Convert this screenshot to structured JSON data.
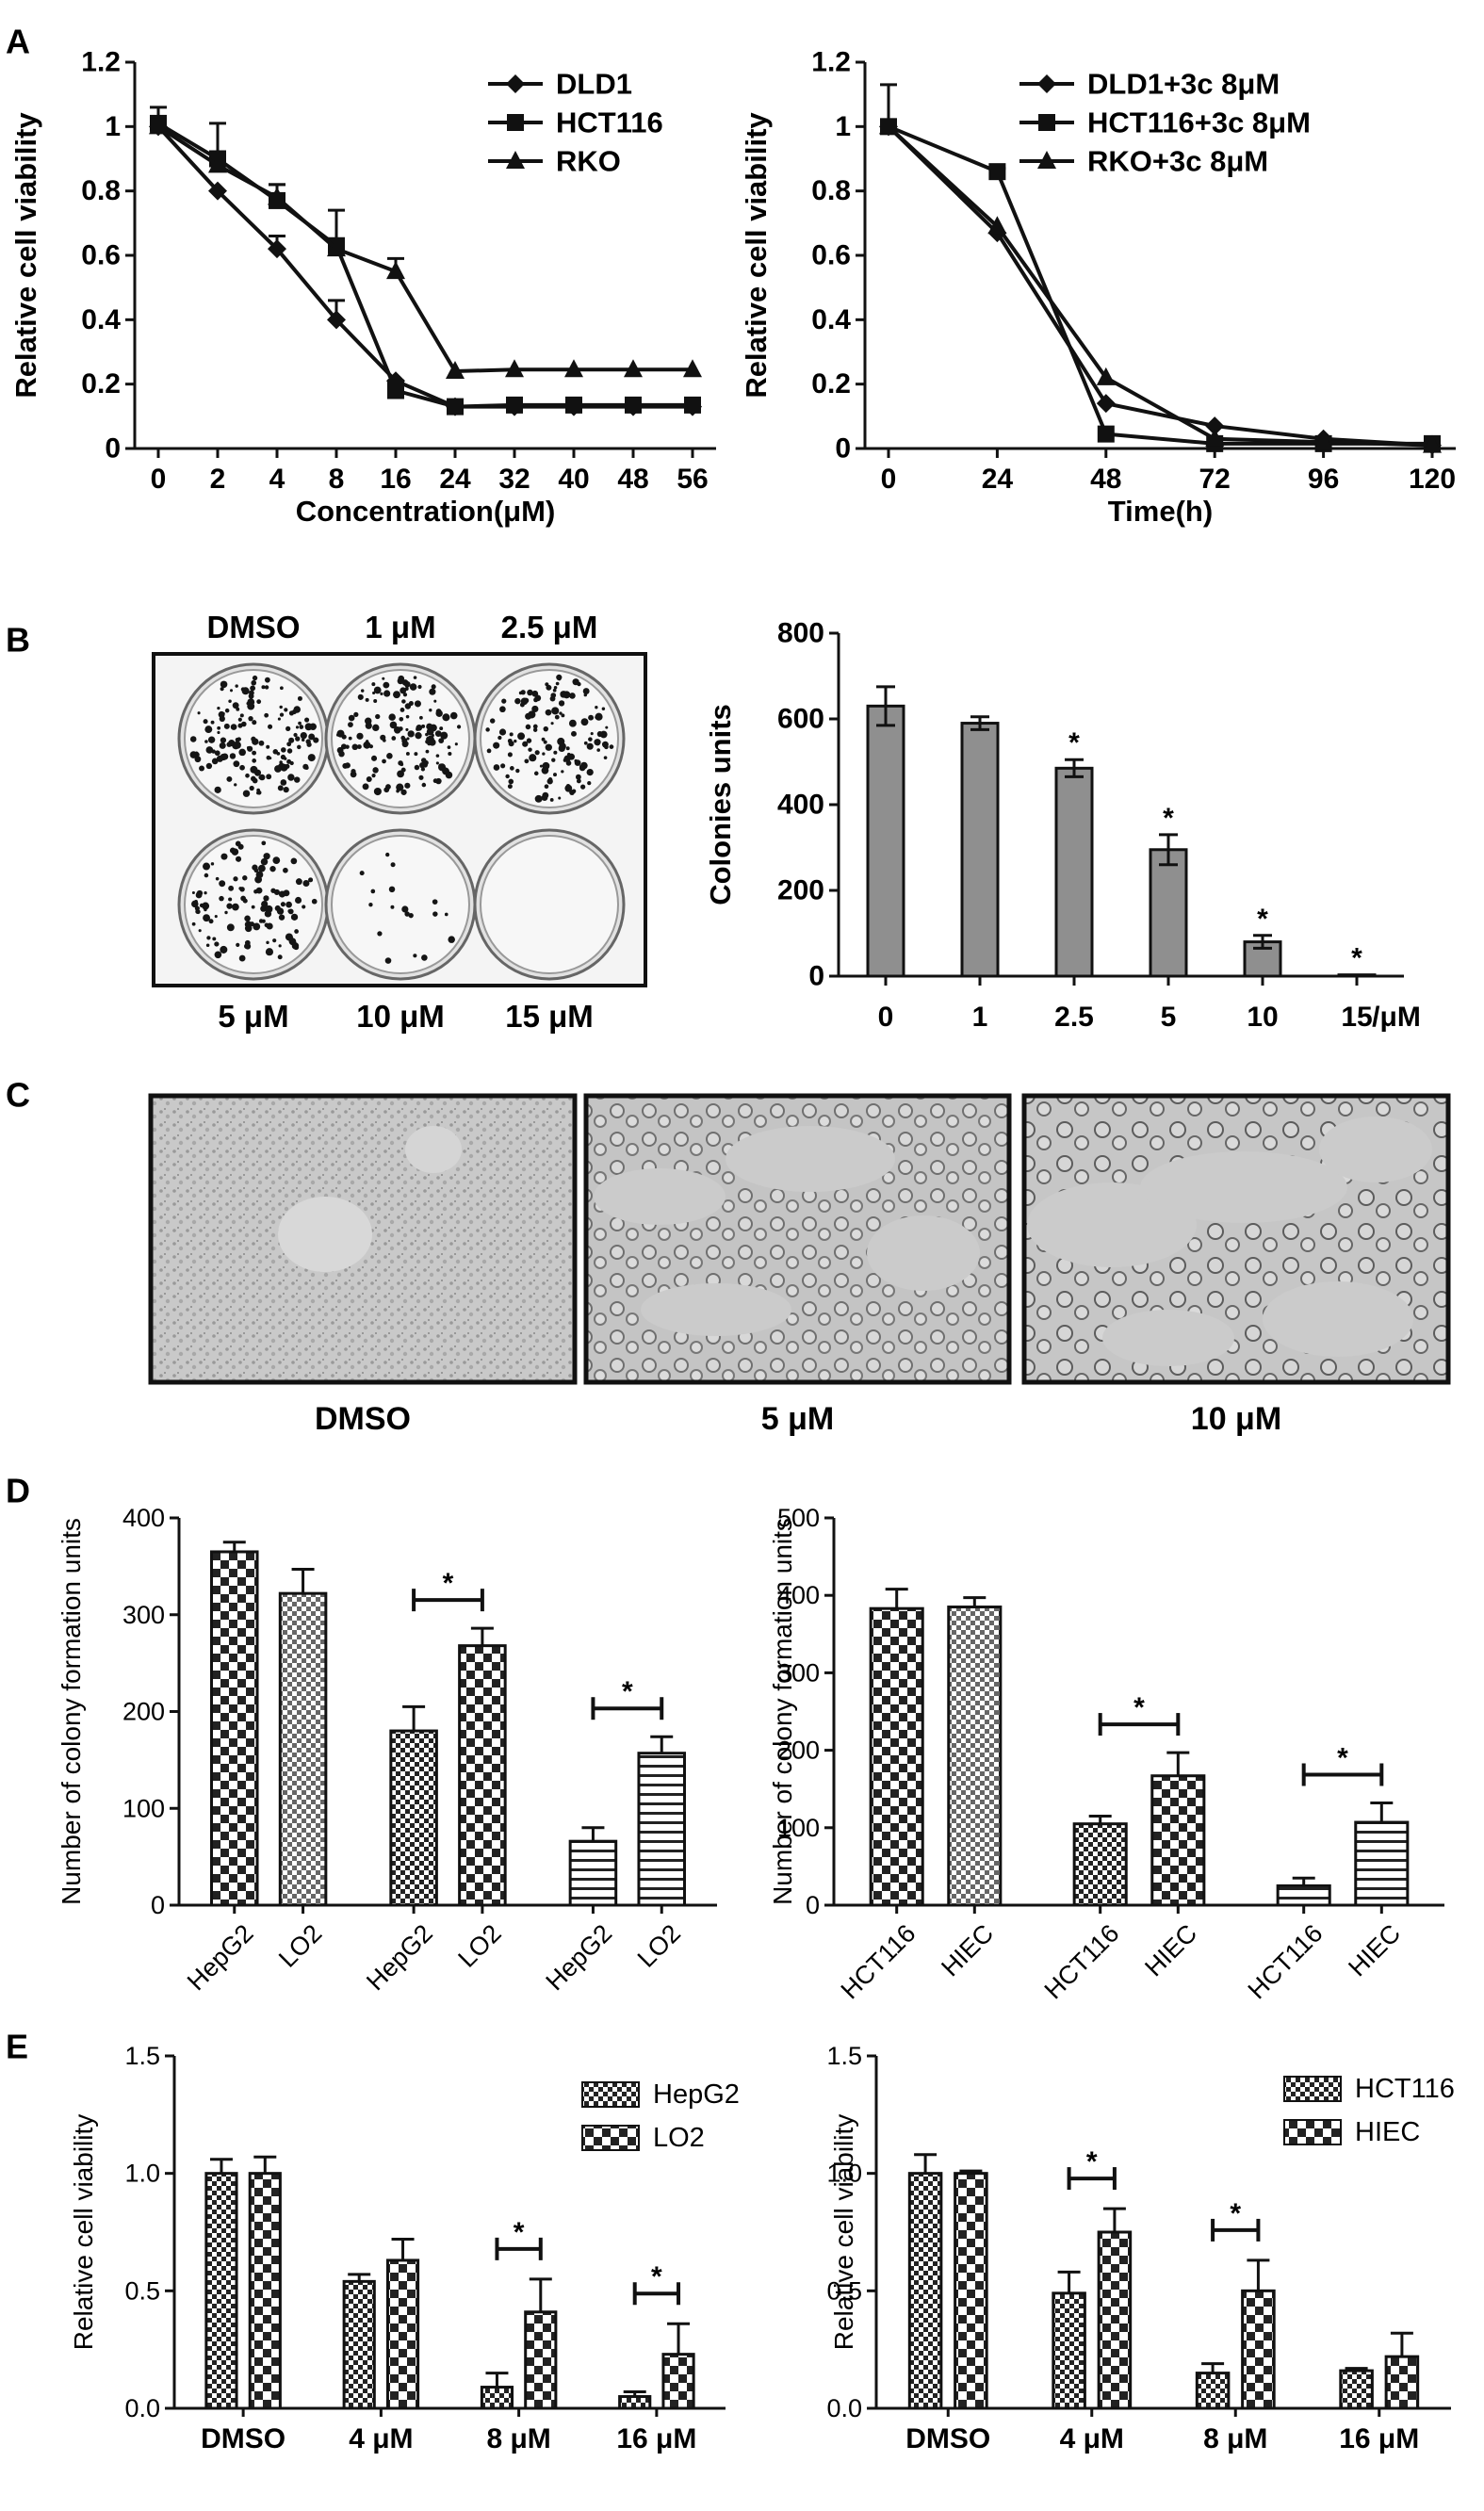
{
  "panel_labels": {
    "a": "A",
    "b": "B",
    "c": "C",
    "d": "D",
    "e": "E"
  },
  "panel_b_photo": {
    "doses_top": [
      "DMSO",
      "1 μM",
      "2.5 μM"
    ],
    "doses_bottom": [
      "5 μM",
      "10 μM",
      "15 μM"
    ],
    "colony_density": [
      1.0,
      0.95,
      0.9,
      0.75,
      0.12,
      0.0
    ]
  },
  "panel_c_micrographs": {
    "labels": [
      "DMSO",
      "5 μM",
      "10 μM"
    ]
  },
  "chart_data": [
    {
      "id": "A1",
      "type": "line",
      "xlabel": "Concentration(μM)",
      "ylabel": "Relative cell viability",
      "categories": [
        "0",
        "2",
        "4",
        "8",
        "16",
        "24",
        "32",
        "40",
        "48",
        "56"
      ],
      "ylim": [
        0,
        1.2
      ],
      "yticks": [
        "0",
        "0.2",
        "0.4",
        "0.6",
        "0.8",
        "1",
        "1.2"
      ],
      "legend_position": "top-right",
      "series": [
        {
          "name": "DLD1",
          "marker": "diamond",
          "values": [
            1.0,
            0.8,
            0.62,
            0.4,
            0.21,
            0.13,
            0.13,
            0.13,
            0.13,
            0.13
          ],
          "err": [
            0.03,
            0.0,
            0.04,
            0.06,
            0.0,
            0.0,
            0.0,
            0.0,
            0.0,
            0.0
          ]
        },
        {
          "name": "HCT116",
          "marker": "square",
          "values": [
            1.01,
            0.9,
            0.77,
            0.63,
            0.18,
            0.13,
            0.135,
            0.135,
            0.135,
            0.135
          ],
          "err": [
            0.05,
            0.11,
            0.05,
            0.11,
            0.03,
            0.01,
            0.0,
            0.0,
            0.0,
            0.0
          ]
        },
        {
          "name": "RKO",
          "marker": "triangle",
          "values": [
            1.0,
            0.88,
            0.78,
            0.62,
            0.55,
            0.24,
            0.245,
            0.245,
            0.245,
            0.245
          ],
          "err": [
            0.03,
            0.0,
            0.04,
            0.0,
            0.04,
            0.0,
            0.0,
            0.0,
            0.0,
            0.0
          ]
        }
      ]
    },
    {
      "id": "A2",
      "type": "line",
      "xlabel": "Time(h)",
      "ylabel": "Relative cell viability",
      "categories": [
        "0",
        "24",
        "48",
        "72",
        "96",
        "120"
      ],
      "ylim": [
        0,
        1.2
      ],
      "yticks": [
        "0",
        "0.2",
        "0.4",
        "0.6",
        "0.8",
        "1",
        "1.2"
      ],
      "legend_position": "top-right",
      "series": [
        {
          "name": "DLD1+3c 8μM",
          "marker": "diamond",
          "values": [
            1.0,
            0.67,
            0.14,
            0.07,
            0.03,
            0.01
          ],
          "err": [
            0.0,
            0.0,
            0.0,
            0.0,
            0.0,
            0.0
          ]
        },
        {
          "name": "HCT116+3c 8μM",
          "marker": "square",
          "values": [
            1.0,
            0.86,
            0.045,
            0.015,
            0.015,
            0.015
          ],
          "err": [
            0.13,
            0.01,
            0.0,
            0.0,
            0.0,
            0.0
          ]
        },
        {
          "name": "RKO+3c 8μM",
          "marker": "triangle",
          "values": [
            1.0,
            0.69,
            0.22,
            0.03,
            0.02,
            0.01
          ],
          "err": [
            0.0,
            0.0,
            0.0,
            0.0,
            0.0,
            0.0
          ]
        }
      ]
    },
    {
      "id": "B",
      "type": "bar",
      "ylabel": "Colonies units",
      "x_unit": "/μM",
      "categories": [
        "0",
        "1",
        "2.5",
        "5",
        "10",
        "15"
      ],
      "values": [
        630,
        590,
        485,
        295,
        80,
        3
      ],
      "err": [
        45,
        15,
        20,
        35,
        15,
        0
      ],
      "significance": [
        "",
        "",
        "*",
        "*",
        "*",
        "*"
      ],
      "ylim": [
        0,
        800
      ],
      "yticks": [
        "0",
        "200",
        "400",
        "600",
        "800"
      ]
    },
    {
      "id": "D1",
      "type": "bar",
      "ylabel": "Number of colony formation units",
      "categories": [
        "HepG2",
        "LO2",
        "HepG2",
        "LO2",
        "HepG2",
        "LO2"
      ],
      "values": [
        365,
        322,
        180,
        268,
        66,
        157
      ],
      "err": [
        10,
        25,
        25,
        18,
        14,
        17
      ],
      "fills": [
        "checkbig",
        "checklite",
        "check",
        "checkbig",
        "lines",
        "lines"
      ],
      "significance_pairs": [
        {
          "from": 2,
          "to": 3,
          "label": "*"
        },
        {
          "from": 4,
          "to": 5,
          "label": "*"
        }
      ],
      "ylim": [
        0,
        400
      ],
      "yticks": [
        "0",
        "100",
        "200",
        "300",
        "400"
      ]
    },
    {
      "id": "D2",
      "type": "bar",
      "ylabel": "Number of colony formation units",
      "categories": [
        "HCT116",
        "HIEC",
        "HCT116",
        "HIEC",
        "HCT116",
        "HIEC"
      ],
      "values": [
        383,
        385,
        105,
        167,
        25,
        107
      ],
      "err": [
        25,
        12,
        10,
        30,
        10,
        25
      ],
      "fills": [
        "checkbig",
        "checklite",
        "check",
        "checkbig",
        "lines",
        "lines"
      ],
      "significance_pairs": [
        {
          "from": 2,
          "to": 3,
          "label": "*"
        },
        {
          "from": 4,
          "to": 5,
          "label": "*"
        }
      ],
      "ylim": [
        0,
        500
      ],
      "yticks": [
        "0",
        "100",
        "200",
        "300",
        "400",
        "500"
      ]
    },
    {
      "id": "E1",
      "type": "bar",
      "ylabel": "Relative cell viability",
      "categories": [
        "DMSO",
        "4 μM",
        "8 μM",
        "16 μM"
      ],
      "ylim": [
        0,
        1.5
      ],
      "yticks": [
        "0.0",
        "0.5",
        "1.0",
        "1.5"
      ],
      "legend_position": "top-right",
      "series": [
        {
          "name": "HepG2",
          "fill": "check",
          "values": [
            1.0,
            0.54,
            0.09,
            0.05
          ],
          "err": [
            0.06,
            0.03,
            0.06,
            0.02
          ]
        },
        {
          "name": "LO2",
          "fill": "checkbig",
          "values": [
            1.0,
            0.63,
            0.41,
            0.23
          ],
          "err": [
            0.07,
            0.09,
            0.14,
            0.13
          ]
        }
      ],
      "significance": [
        "",
        "",
        "*",
        "*"
      ]
    },
    {
      "id": "E2",
      "type": "bar",
      "ylabel": "Relative cell viability",
      "categories": [
        "DMSO",
        "4 μM",
        "8 μM",
        "16 μM"
      ],
      "ylim": [
        0,
        1.5
      ],
      "yticks": [
        "0.0",
        "0.5",
        "1.0",
        "1.5"
      ],
      "legend_position": "top-right",
      "series": [
        {
          "name": "HCT116",
          "fill": "check",
          "values": [
            1.0,
            0.49,
            0.15,
            0.16
          ],
          "err": [
            0.08,
            0.09,
            0.04,
            0.01
          ]
        },
        {
          "name": "HIEC",
          "fill": "checkbig",
          "values": [
            1.0,
            0.75,
            0.5,
            0.22
          ],
          "err": [
            0.01,
            0.1,
            0.13,
            0.1
          ]
        }
      ],
      "significance": [
        "",
        "*",
        "*",
        ""
      ]
    }
  ]
}
